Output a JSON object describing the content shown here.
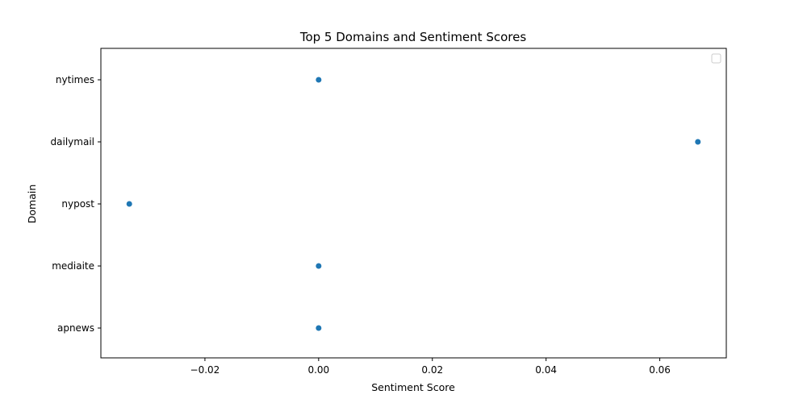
{
  "chart_data": {
    "type": "scatter",
    "title": "Top 5 Domains and Sentiment Scores",
    "xlabel": "Sentiment Score",
    "ylabel": "Domain",
    "categories": [
      "nytimes",
      "dailymail",
      "nypost",
      "mediaite",
      "apnews"
    ],
    "points": [
      {
        "category": "nytimes",
        "x": 0.0
      },
      {
        "category": "dailymail",
        "x": 0.0667
      },
      {
        "category": "nypost",
        "x": -0.0333
      },
      {
        "category": "mediaite",
        "x": 0.0
      },
      {
        "category": "apnews",
        "x": 0.0
      }
    ],
    "xlim": [
      -0.0383,
      0.0717
    ],
    "xticks": [
      -0.02,
      0.0,
      0.02,
      0.04,
      0.06
    ],
    "xtick_labels": [
      "−0.02",
      "0.00",
      "0.02",
      "0.04",
      "0.06"
    ],
    "grid": false,
    "legend": "top-right (empty)",
    "point_color": "#1f77b4"
  }
}
